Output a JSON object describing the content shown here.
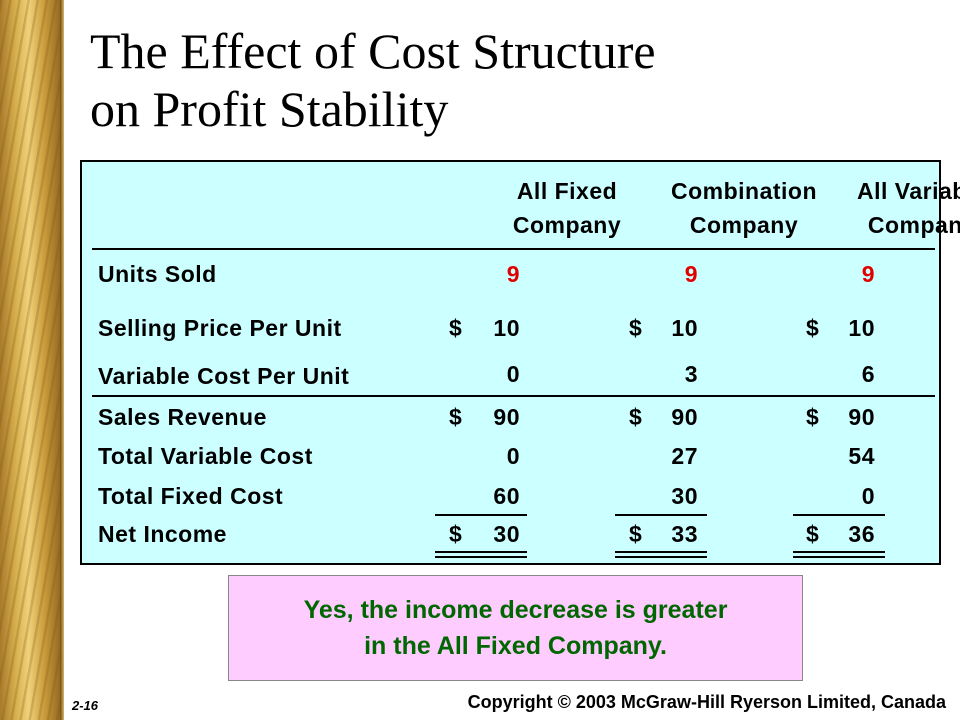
{
  "slide": {
    "title_line1": "The Effect of Cost Structure",
    "title_line2": "on Profit Stability",
    "page_number": "2-16",
    "copyright": "Copyright © 2003 McGraw-Hill Ryerson Limited, Canada"
  },
  "table": {
    "columns": [
      {
        "line1": "All Fixed",
        "line2": "Company"
      },
      {
        "line1": "Combination",
        "line2": "Company"
      },
      {
        "line1": "All Variable",
        "line2": "Company"
      }
    ],
    "rows": [
      {
        "label": "Units Sold",
        "values": [
          "9",
          "9",
          "9"
        ],
        "dollar": false,
        "highlight": true
      },
      {
        "label": "Selling Price Per Unit",
        "values": [
          "10",
          "10",
          "10"
        ],
        "dollar": true
      },
      {
        "label": "Variable Cost Per Unit",
        "values": [
          "0",
          "3",
          "6"
        ],
        "dollar": false
      },
      {
        "label": "Sales Revenue",
        "values": [
          "90",
          "90",
          "90"
        ],
        "dollar": true
      },
      {
        "label": "Total Variable Cost",
        "values": [
          "0",
          "27",
          "54"
        ],
        "dollar": false
      },
      {
        "label": "Total Fixed Cost",
        "values": [
          "60",
          "30",
          "0"
        ],
        "dollar": false
      },
      {
        "label": "Net Income",
        "values": [
          "30",
          "33",
          "36"
        ],
        "dollar": true
      }
    ],
    "currency_symbol": "$"
  },
  "note": {
    "line1": "Yes, the income decrease is greater",
    "line2": "in the All Fixed Company."
  },
  "colors": {
    "table_background": "#ccffff",
    "note_background": "#ffccff",
    "note_text": "#006600",
    "highlight_value": "#e00000"
  }
}
